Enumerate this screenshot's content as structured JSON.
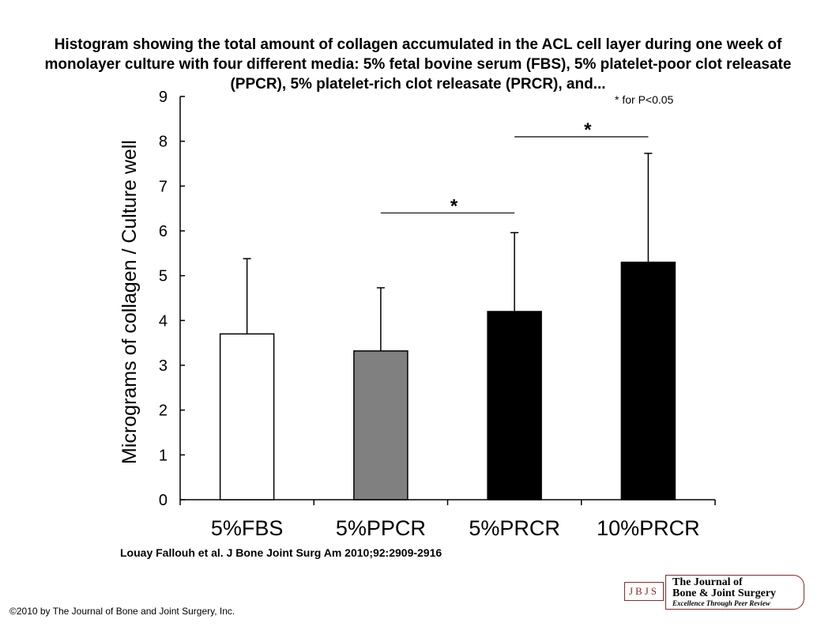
{
  "title": "Histogram showing the total amount of collagen accumulated in the ACL cell layer during one week of monolayer culture with four different media: 5% fetal bovine serum (FBS), 5% platelet-poor clot releasate (PPCR), 5% platelet-rich clot releasate (PRCR), and...",
  "citation": "Louay Fallouh et al. J Bone Joint Surg Am 2010;92:2909-2916",
  "copyright": "©2010 by The Journal of Bone and Joint Surgery, Inc.",
  "logo": {
    "abbr": "JBJS",
    "name_line1": "The Journal of",
    "name_line2": "Bone & Joint Surgery",
    "tagline": "Excellence Through Peer Review",
    "color": "#8b2a2a"
  },
  "chart_data": {
    "type": "bar",
    "categories": [
      "5%FBS",
      "5%PPCR",
      "5%PRCR",
      "10%PRCR"
    ],
    "values": [
      3.7,
      3.32,
      4.2,
      5.3
    ],
    "error_upper": [
      5.38,
      4.73,
      5.96,
      7.73
    ],
    "bar_colors": [
      "#ffffff",
      "#808080",
      "#000000",
      "#000000"
    ],
    "ylabel": "Micrograms of collagen / Culture well",
    "ylim": [
      0,
      9
    ],
    "yticks": [
      "0",
      "1",
      "2",
      "3",
      "4",
      "5",
      "6",
      "7",
      "8",
      "9"
    ],
    "significance_note": "* for P<0.05",
    "significance": [
      {
        "from": "5%PPCR",
        "to": "5%PRCR",
        "y": 6.4,
        "label": "*"
      },
      {
        "from": "5%PRCR",
        "to": "10%PRCR",
        "y": 8.1,
        "label": "*"
      }
    ],
    "grid": false,
    "legend": "none"
  }
}
